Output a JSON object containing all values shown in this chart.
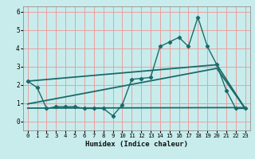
{
  "xlabel": "Humidex (Indice chaleur)",
  "background_color": "#c8ecec",
  "grid_color": "#e8a0a0",
  "line_color": "#1a6b6b",
  "x_ticks": [
    0,
    1,
    2,
    3,
    4,
    5,
    6,
    7,
    8,
    9,
    10,
    11,
    12,
    13,
    14,
    15,
    16,
    17,
    18,
    19,
    20,
    21,
    22,
    23
  ],
  "y_ticks": [
    0,
    1,
    2,
    3,
    4,
    5,
    6
  ],
  "ylim": [
    -0.5,
    6.3
  ],
  "xlim": [
    -0.5,
    23.5
  ],
  "series1_x": [
    0,
    1,
    2,
    3,
    4,
    5,
    6,
    7,
    8,
    9,
    10,
    11,
    12,
    13,
    14,
    15,
    16,
    17,
    18,
    19,
    20,
    21,
    22,
    23
  ],
  "series1_y": [
    2.2,
    1.85,
    0.7,
    0.8,
    0.8,
    0.8,
    0.7,
    0.7,
    0.7,
    0.3,
    0.9,
    2.3,
    2.35,
    2.4,
    4.1,
    4.35,
    4.6,
    4.1,
    5.7,
    4.1,
    3.1,
    1.7,
    0.7,
    0.7
  ],
  "series2_x": [
    0,
    20,
    23
  ],
  "series2_y": [
    2.2,
    3.1,
    0.7
  ],
  "series3_x": [
    0,
    23
  ],
  "series3_y": [
    0.72,
    0.75
  ],
  "series4_x": [
    0,
    20,
    23
  ],
  "series4_y": [
    0.95,
    2.9,
    0.7
  ],
  "tick_fontsize": 5.2,
  "xlabel_fontsize": 6.5
}
